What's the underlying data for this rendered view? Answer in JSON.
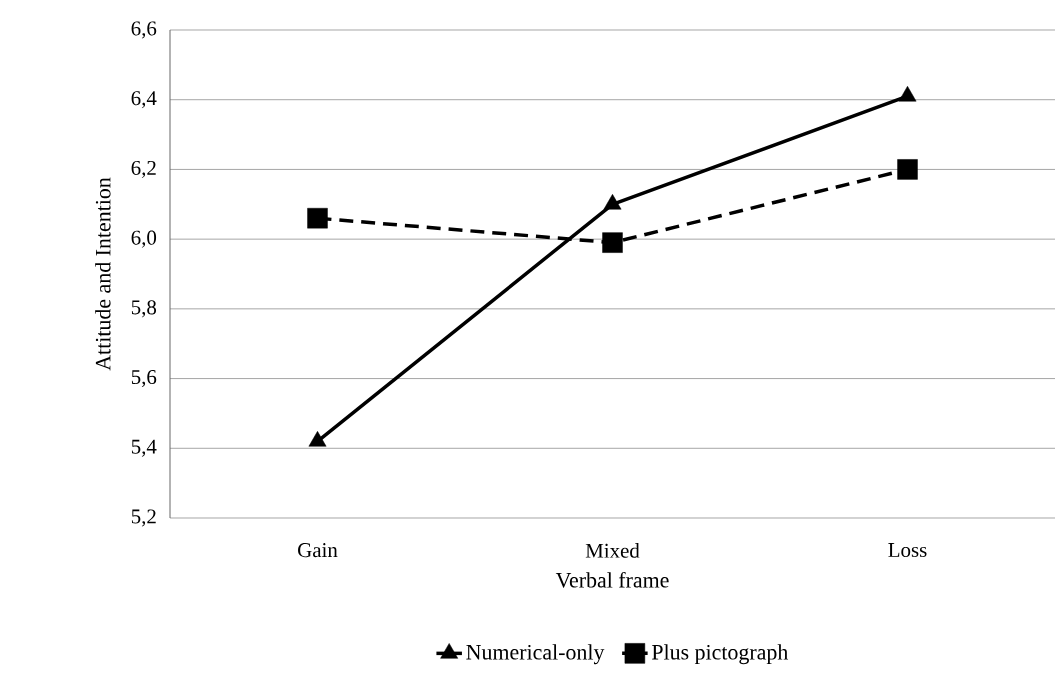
{
  "chart_data": {
    "type": "line",
    "xlabel": "Verbal frame",
    "ylabel": "Attitude and Intention",
    "categories": [
      "Gain",
      "Mixed",
      "Loss"
    ],
    "series": [
      {
        "name": "Numerical-only",
        "color": "#000000",
        "values": [
          5.42,
          6.1,
          6.41
        ],
        "marker": "triangle",
        "line_style": "solid"
      },
      {
        "name": "Plus pictograph",
        "color": "#000000",
        "values": [
          6.06,
          5.99,
          6.2
        ],
        "marker": "square",
        "line_style": "dashed"
      }
    ],
    "ylim": [
      5.2,
      6.6
    ],
    "yticks": [
      {
        "value": 5.2,
        "label": "5,2"
      },
      {
        "value": 5.4,
        "label": "5,4"
      },
      {
        "value": 5.6,
        "label": "5,6"
      },
      {
        "value": 5.8,
        "label": "5,8"
      },
      {
        "value": 6.0,
        "label": "6,0"
      },
      {
        "value": 6.2,
        "label": "6,2"
      },
      {
        "value": 6.4,
        "label": "6,4"
      },
      {
        "value": 6.6,
        "label": "6,6"
      }
    ],
    "grid": "y",
    "legend": "bottom"
  }
}
